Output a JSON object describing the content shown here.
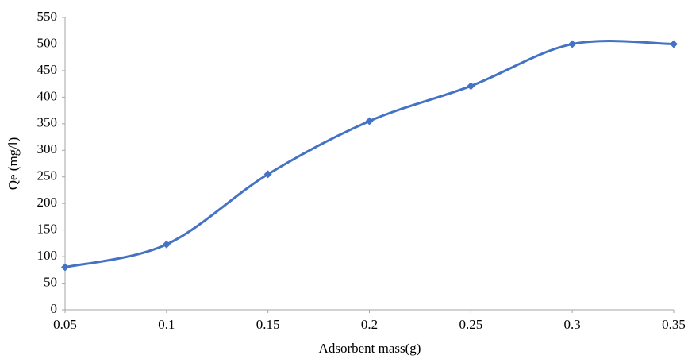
{
  "chart_data": {
    "type": "line",
    "x": [
      0.05,
      0.1,
      0.15,
      0.2,
      0.25,
      0.3,
      0.35
    ],
    "values": [
      80,
      123,
      255,
      355,
      421,
      500,
      500
    ],
    "color": "#4472c4",
    "marker": "diamond",
    "smooth": true,
    "xlim": [
      0.05,
      0.35
    ],
    "xticks": [
      0.05,
      0.1,
      0.15,
      0.2,
      0.25,
      0.3,
      0.35
    ],
    "ylim": [
      0,
      550
    ],
    "yticks": [
      0,
      50,
      100,
      150,
      200,
      250,
      300,
      350,
      400,
      450,
      500,
      550
    ],
    "grid": false,
    "xlabel": "Adsorbent mass(g)",
    "ylabel": "Qe (mg/l)"
  }
}
